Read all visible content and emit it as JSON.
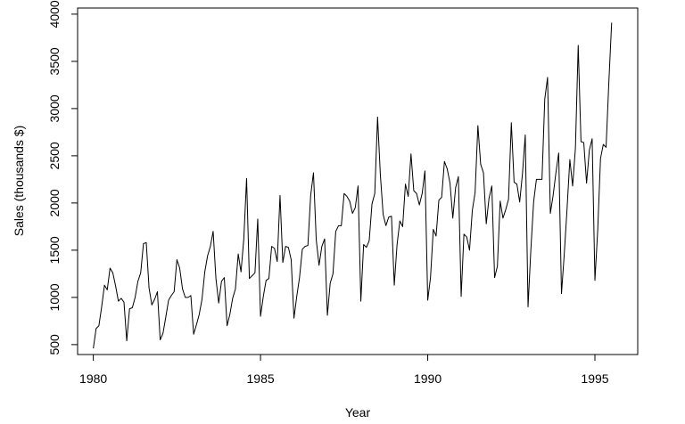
{
  "chart_data": {
    "type": "line",
    "title": "",
    "xlabel": "Year",
    "ylabel": "Sales (thousands $)",
    "xlim": [
      1979.53,
      1996.28
    ],
    "ylim": [
      395,
      4065
    ],
    "x_ticks": [
      "1980",
      "1985",
      "1990",
      "1995"
    ],
    "y_ticks": [
      "500",
      "1000",
      "1500",
      "2000",
      "2500",
      "3000",
      "3500",
      "4000"
    ],
    "grid": false,
    "legend": "none",
    "line_color": "#000000",
    "x_start": "1980",
    "frequency": "monthly",
    "values": [
      460,
      670,
      700,
      900,
      1130,
      1080,
      1310,
      1260,
      1120,
      960,
      990,
      950,
      540,
      880,
      890,
      1000,
      1170,
      1260,
      1570,
      1580,
      1100,
      920,
      980,
      1060,
      550,
      620,
      790,
      970,
      1020,
      1060,
      1400,
      1310,
      1090,
      1000,
      1000,
      1020,
      610,
      710,
      820,
      980,
      1270,
      1440,
      1540,
      1700,
      1200,
      940,
      1170,
      1210,
      700,
      820,
      990,
      1090,
      1460,
      1270,
      1620,
      2260,
      1200,
      1230,
      1260,
      1830,
      800,
      1010,
      1180,
      1200,
      1540,
      1520,
      1380,
      2080,
      1370,
      1540,
      1530,
      1400,
      780,
      1010,
      1210,
      1510,
      1540,
      1550,
      2080,
      2320,
      1610,
      1340,
      1540,
      1620,
      810,
      1150,
      1250,
      1700,
      1760,
      1760,
      2100,
      2070,
      2020,
      1890,
      1950,
      2180,
      960,
      1560,
      1530,
      1600,
      1990,
      2100,
      2910,
      2300,
      1880,
      1760,
      1850,
      1860,
      1130,
      1560,
      1810,
      1750,
      2200,
      2070,
      2520,
      2130,
      2100,
      1980,
      2100,
      2340,
      970,
      1210,
      1720,
      1650,
      2030,
      2060,
      2440,
      2360,
      2210,
      1840,
      2160,
      2280,
      1010,
      1670,
      1640,
      1500,
      1920,
      2110,
      2820,
      2410,
      2320,
      1780,
      2050,
      2180,
      1210,
      1330,
      2020,
      1840,
      1930,
      2040,
      2850,
      2220,
      2200,
      2010,
      2310,
      2720,
      900,
      1500,
      2010,
      2250,
      2250,
      2250,
      3100,
      3330,
      1890,
      2080,
      2320,
      2530,
      1040,
      1460,
      1940,
      2460,
      2180,
      2580,
      3670,
      2650,
      2640,
      2210,
      2560,
      2680,
      1180,
      1710,
      2470,
      2620,
      2590,
      3280,
      3910
    ]
  }
}
